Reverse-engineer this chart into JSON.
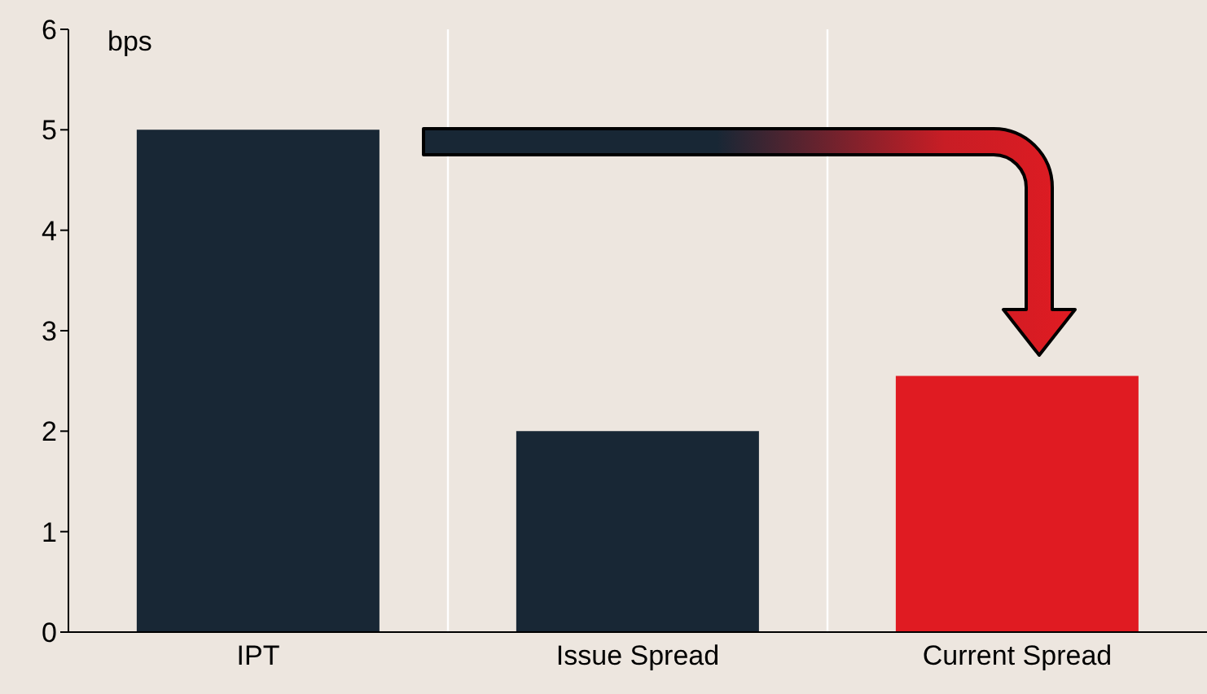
{
  "chart_data": {
    "type": "bar",
    "ylabel": "bps",
    "categories": [
      "IPT",
      "Issue Spread",
      "Current Spread"
    ],
    "values": [
      5,
      2,
      2.55
    ],
    "colors": [
      "#182735",
      "#182735",
      "#e01b22"
    ],
    "ylim": [
      0,
      6
    ],
    "yticks": [
      0,
      1,
      2,
      3,
      4,
      5,
      6
    ],
    "grid": "x"
  }
}
